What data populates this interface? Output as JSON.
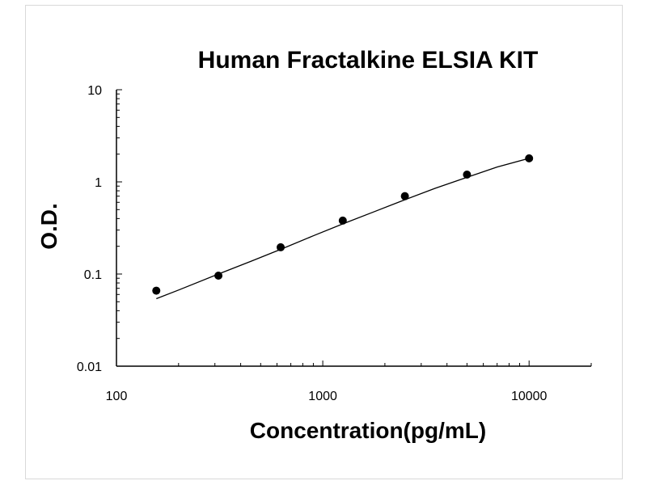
{
  "chart_data": {
    "type": "scatter",
    "title": "Human Fractalkine ELSIA KIT",
    "xlabel": "Concentration(pg/mL)",
    "ylabel": "O.D.",
    "x_scale": "log",
    "y_scale": "log",
    "xlim": [
      100,
      20000
    ],
    "ylim": [
      0.01,
      10
    ],
    "x_ticks": [
      "100",
      "1000",
      "10000"
    ],
    "y_ticks": [
      "0.01",
      "0.1",
      "1",
      "10"
    ],
    "grid": false,
    "legend": false,
    "series": [
      {
        "x": [
          156,
          312,
          625,
          1250,
          2500,
          5000,
          10000
        ],
        "y": [
          0.066,
          0.096,
          0.195,
          0.38,
          0.7,
          1.2,
          1.8
        ]
      }
    ],
    "fit_curve": {
      "x": [
        156,
        200,
        312,
        450,
        625,
        900,
        1250,
        1800,
        2500,
        3500,
        5000,
        7000,
        10000
      ],
      "y": [
        0.054,
        0.067,
        0.1,
        0.138,
        0.185,
        0.26,
        0.35,
        0.48,
        0.64,
        0.85,
        1.12,
        1.45,
        1.8
      ]
    },
    "colors": {
      "marker": "#000000",
      "line": "#000000",
      "axis": "#000000"
    }
  }
}
